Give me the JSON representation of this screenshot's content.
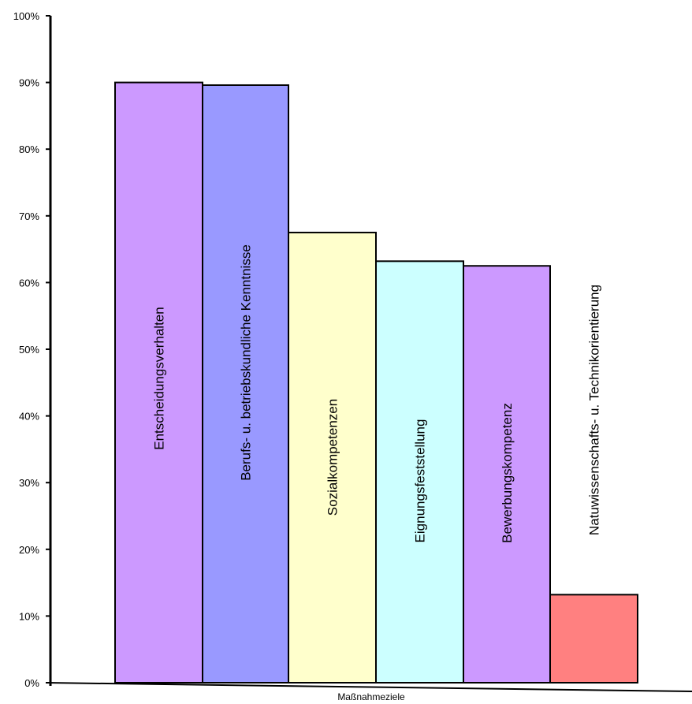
{
  "chart_data": {
    "type": "bar",
    "categories": [
      "Entscheidungsverhalten",
      "Berufs- u. betriebskundliche Kenntnisse",
      "Sozialkompetenzen",
      "Eignungsfeststellung",
      "Bewerbungskompetenz",
      "Natuwissenschafts- u. Technikorientierung"
    ],
    "values": [
      90,
      89.6,
      67.5,
      63.2,
      62.5,
      13.2
    ],
    "colors": [
      "#cc99ff",
      "#9999ff",
      "#ffffcc",
      "#ccffff",
      "#cc99ff",
      "#ff8080"
    ],
    "xlabel": "Maßnahmeziele",
    "ylabel": "",
    "ylim": [
      0,
      100
    ],
    "yticks": [
      "0%",
      "10%",
      "20%",
      "30%",
      "40%",
      "50%",
      "60%",
      "70%",
      "80%",
      "90%",
      "100%"
    ],
    "grid": false,
    "labels_inside_bars": true
  }
}
